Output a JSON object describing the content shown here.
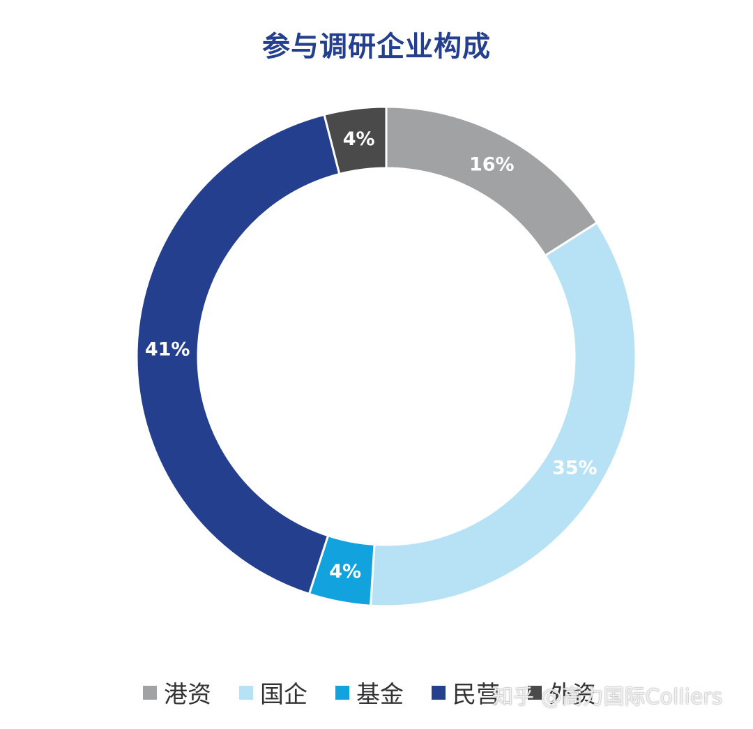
{
  "chart_data": {
    "type": "pie",
    "title": "参与调研企业构成",
    "donut": true,
    "slices": [
      {
        "label": "港资",
        "value": 16,
        "display": "16%",
        "color": "#a0a2a3"
      },
      {
        "label": "国企",
        "value": 35,
        "display": "35%",
        "color": "#b7e2f5"
      },
      {
        "label": "基金",
        "value": 4,
        "display": "4%",
        "color": "#12a3de"
      },
      {
        "label": "民营",
        "value": 41,
        "display": "41%",
        "color": "#253f8f"
      },
      {
        "label": "外资",
        "value": 4,
        "display": "4%",
        "color": "#4a4a4a"
      }
    ],
    "legend_position": "bottom"
  },
  "watermark": "知乎 @高力国际Colliers"
}
